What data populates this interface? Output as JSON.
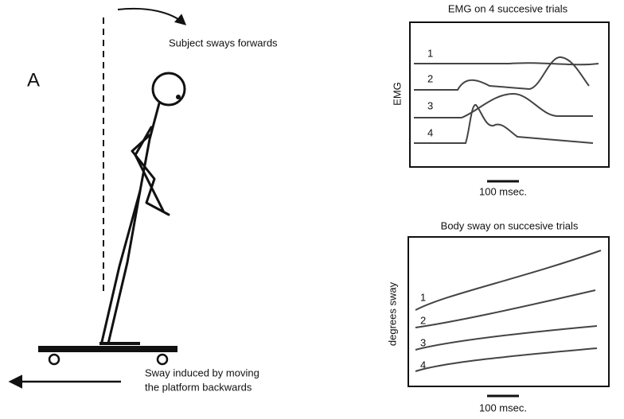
{
  "figure": {
    "panel_label": "A",
    "top_annotation": "Subject sways forwards",
    "bottom_annotation": [
      "Sway induced by moving",
      "the platform backwards"
    ]
  },
  "emg_panel": {
    "title": "EMG on 4 succesive trials",
    "y_label": "EMG",
    "trace_labels": [
      "1",
      "2",
      "3",
      "4"
    ],
    "scale_label": "100 msec."
  },
  "sway_panel": {
    "title": "Body sway on succesive trials",
    "y_label": "degrees sway",
    "trace_labels": [
      "1",
      "2",
      "3",
      "4"
    ],
    "scale_label": "100 msec."
  }
}
